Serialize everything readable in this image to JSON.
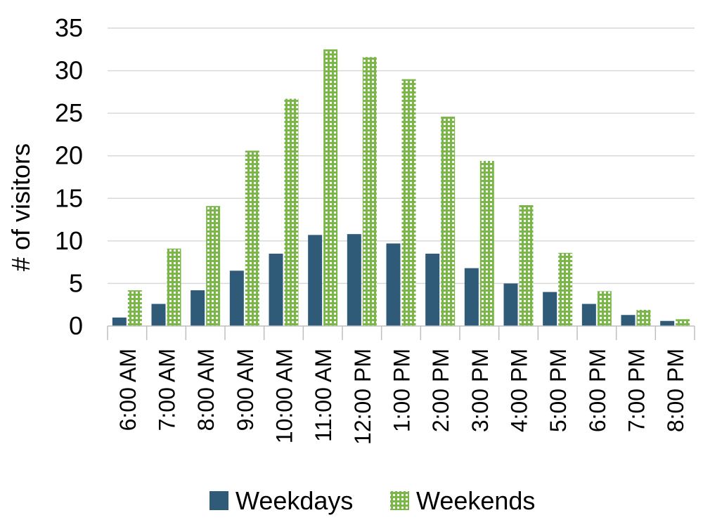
{
  "chart_data": {
    "type": "bar",
    "title": "",
    "xlabel": "",
    "ylabel": "# of visitors",
    "ylim": [
      0,
      35
    ],
    "yticks": [
      0,
      5,
      10,
      15,
      20,
      25,
      30,
      35
    ],
    "grid": true,
    "legend_position": "bottom",
    "categories": [
      "6:00 AM",
      "7:00 AM",
      "8:00 AM",
      "9:00 AM",
      "10:00 AM",
      "11:00 AM",
      "12:00 PM",
      "1:00 PM",
      "2:00 PM",
      "3:00 PM",
      "4:00 PM",
      "5:00 PM",
      "6:00 PM",
      "7:00 PM",
      "8:00 PM"
    ],
    "series": [
      {
        "name": "Weekdays",
        "color": "#2f5a78",
        "pattern": "solid",
        "values": [
          1.0,
          2.6,
          4.2,
          6.5,
          8.5,
          10.7,
          10.8,
          9.7,
          8.5,
          6.8,
          5.0,
          4.0,
          2.6,
          1.3,
          0.6
        ]
      },
      {
        "name": "Weekends",
        "color": "#7ab648",
        "pattern": "dotted-grid",
        "values": [
          4.2,
          9.1,
          14.1,
          20.6,
          26.7,
          32.5,
          31.6,
          29.0,
          24.6,
          19.4,
          14.2,
          8.6,
          4.1,
          1.9,
          0.8
        ]
      }
    ]
  }
}
